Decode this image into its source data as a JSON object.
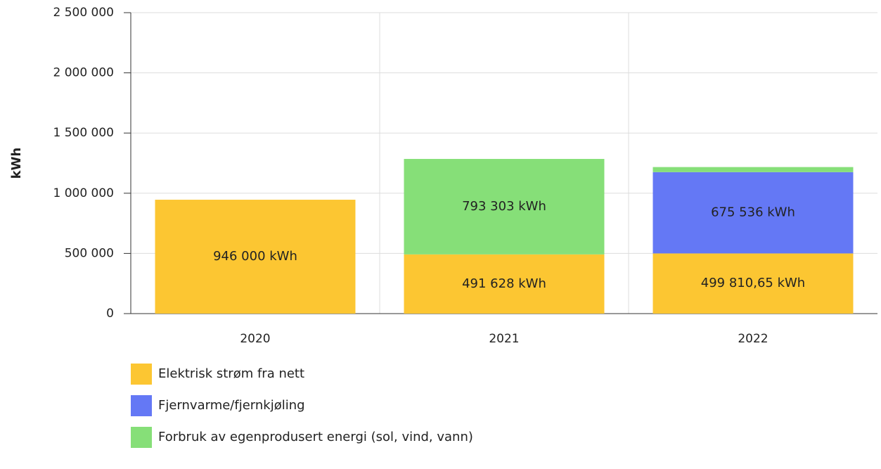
{
  "chart_data": {
    "type": "stacked-bar",
    "y_label": "kWh",
    "categories": [
      "2020",
      "2021",
      "2022"
    ],
    "series": [
      {
        "name": "Elektrisk strøm fra nett",
        "color": "#fcc632",
        "values": [
          946000,
          491628,
          499810.65
        ],
        "value_labels": [
          "946 000 kWh",
          "491 628 kWh",
          "499 810,65 kWh"
        ]
      },
      {
        "name": "Fjernvarme/fjernkjøling",
        "color": "#6478f5",
        "values": [
          null,
          null,
          675536
        ],
        "value_labels": [
          null,
          null,
          "675 536 kWh"
        ]
      },
      {
        "name": "Forbruk av egenprodusert energi (sol, vind, vann)",
        "color": "#86df78",
        "values": [
          null,
          793303,
          42000
        ],
        "value_labels": [
          null,
          "793 303 kWh",
          null
        ]
      }
    ],
    "ylim": [
      0,
      2500000
    ],
    "yticks": [
      0,
      {
        "value": 500000,
        "label": "500 000"
      },
      {
        "value": 1000000,
        "label": "1 000 000"
      },
      {
        "value": 1500000,
        "label": "1 500 000"
      },
      {
        "value": 2000000,
        "label": "2 000 000"
      },
      {
        "value": 2500000,
        "label": "2 500 000"
      }
    ],
    "grid": true,
    "legend": "bottom"
  }
}
